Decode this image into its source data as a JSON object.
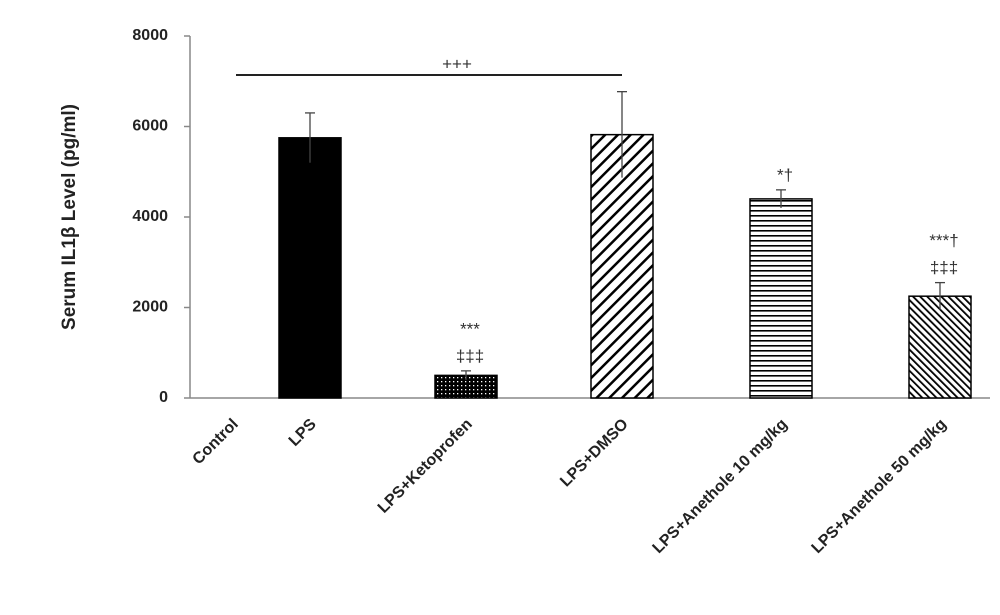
{
  "chart_data": {
    "type": "bar",
    "y_label": "Serum IL1β Level (pg/ml)",
    "categories": [
      "Control",
      "LPS",
      "LPS+Ketoprofen",
      "LPS+DMSO",
      "LPS+Anethole 10 mg/kg",
      "LPS+Anethole 50 mg/kg"
    ],
    "values": [
      0,
      5750,
      500,
      5820,
      4400,
      2250
    ],
    "errors": [
      0,
      550,
      100,
      950,
      200,
      300
    ],
    "patterns": [
      "solid",
      "solid",
      "dots",
      "diagonal",
      "horizontal",
      "back-diagonal"
    ],
    "color": "#000000",
    "annotations": [
      null,
      null,
      [
        "***",
        "‡‡‡"
      ],
      null,
      [
        "*†"
      ],
      [
        "***†",
        "‡‡‡"
      ]
    ],
    "bracket_label": "+++",
    "ylim": [
      0,
      8000
    ],
    "yticks": [
      0,
      2000,
      4000,
      6000,
      8000
    ],
    "grid": false
  }
}
